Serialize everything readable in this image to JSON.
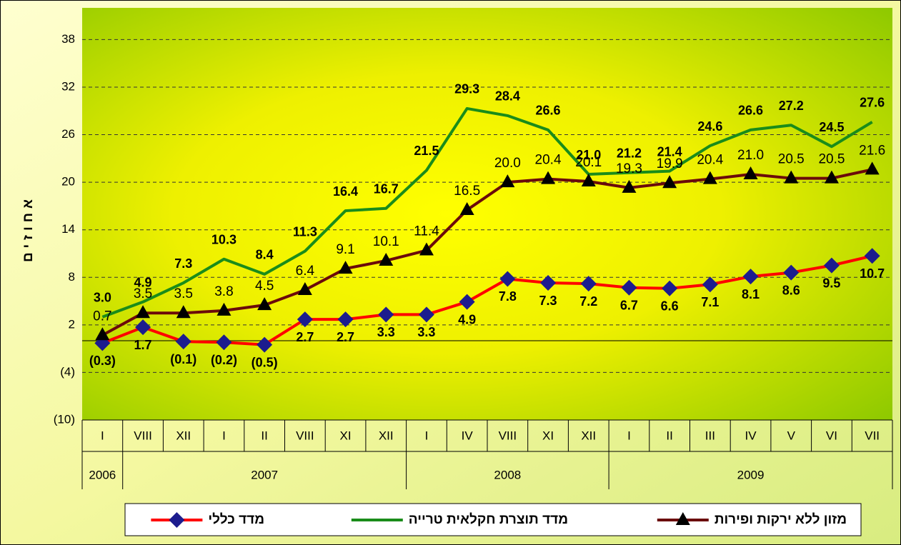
{
  "chart_data": {
    "type": "line",
    "y_label": "אחוזים",
    "categories": [
      "I",
      "VIII",
      "XII",
      "I",
      "II",
      "VIII",
      "XI",
      "XII",
      "I",
      "IV",
      "VIII",
      "XI",
      "XII",
      "I",
      "II",
      "III",
      "IV",
      "V",
      "VI",
      "VII"
    ],
    "year_groups": [
      {
        "label": "2006",
        "count": 1
      },
      {
        "label": "2007",
        "count": 7
      },
      {
        "label": "2008",
        "count": 5
      },
      {
        "label": "2009",
        "count": 7
      }
    ],
    "ylim": [
      -10,
      42
    ],
    "yticks": [
      {
        "value": -10,
        "label": "(10)"
      },
      {
        "value": -4,
        "label": "(4)"
      },
      2,
      8,
      14,
      20,
      26,
      32,
      38
    ],
    "grid": true,
    "series": [
      {
        "name": "מדד כללי",
        "color": "#ff0000",
        "marker": "diamond",
        "marker_color": "#1c1c8e",
        "label_style": "below-bold",
        "values": [
          -0.3,
          1.7,
          -0.1,
          -0.2,
          -0.5,
          2.7,
          2.7,
          3.3,
          3.3,
          4.9,
          7.8,
          7.3,
          7.2,
          6.7,
          6.6,
          7.1,
          8.1,
          8.6,
          9.5,
          10.7
        ],
        "value_labels": [
          "(0.3)",
          "1.7",
          "(0.1)",
          "(0.2)",
          "(0.5)",
          "2.7",
          "2.7",
          "3.3",
          "3.3",
          "4.9",
          "7.8",
          "7.3",
          "7.2",
          "6.7",
          "6.6",
          "7.1",
          "8.1",
          "8.6",
          "9.5",
          "10.7"
        ]
      },
      {
        "name": "מדד תוצרת חקלאית טרייה",
        "color": "#1a8c1a",
        "marker": "none",
        "marker_color": "#1a8c1a",
        "label_style": "above-bold",
        "values": [
          3.0,
          4.9,
          7.3,
          10.3,
          8.4,
          11.3,
          16.4,
          16.7,
          21.5,
          29.3,
          28.4,
          26.6,
          21.0,
          21.2,
          21.4,
          24.6,
          26.6,
          27.2,
          24.5,
          27.6
        ],
        "value_labels": [
          "3.0",
          "4.9",
          "7.3",
          "10.3",
          "8.4",
          "11.3",
          "16.4",
          "16.7",
          "21.5",
          "29.3",
          "28.4",
          "26.6",
          "21.0",
          "21.2",
          "21.4",
          "24.6",
          "26.6",
          "27.2",
          "24.5",
          "27.6"
        ]
      },
      {
        "name": "מזון ללא ירקות ופירות",
        "color": "#6b0a0a",
        "marker": "triangle",
        "marker_color": "#000000",
        "label_style": "above",
        "values": [
          0.7,
          3.5,
          3.5,
          3.8,
          4.5,
          6.4,
          9.1,
          10.1,
          11.4,
          16.5,
          20.0,
          20.4,
          20.1,
          19.3,
          19.9,
          20.4,
          21.0,
          20.5,
          20.5,
          21.6
        ],
        "value_labels": [
          "0.7",
          "3.5",
          "3.5",
          "3.8",
          "4.5",
          "6.4",
          "9.1",
          "10.1",
          "11.4",
          "16.5",
          "20.0",
          "20.4",
          "20.1",
          "19.3",
          "19.9",
          "20.4",
          "21.0",
          "20.5",
          "20.5",
          "21.6"
        ]
      }
    ]
  }
}
